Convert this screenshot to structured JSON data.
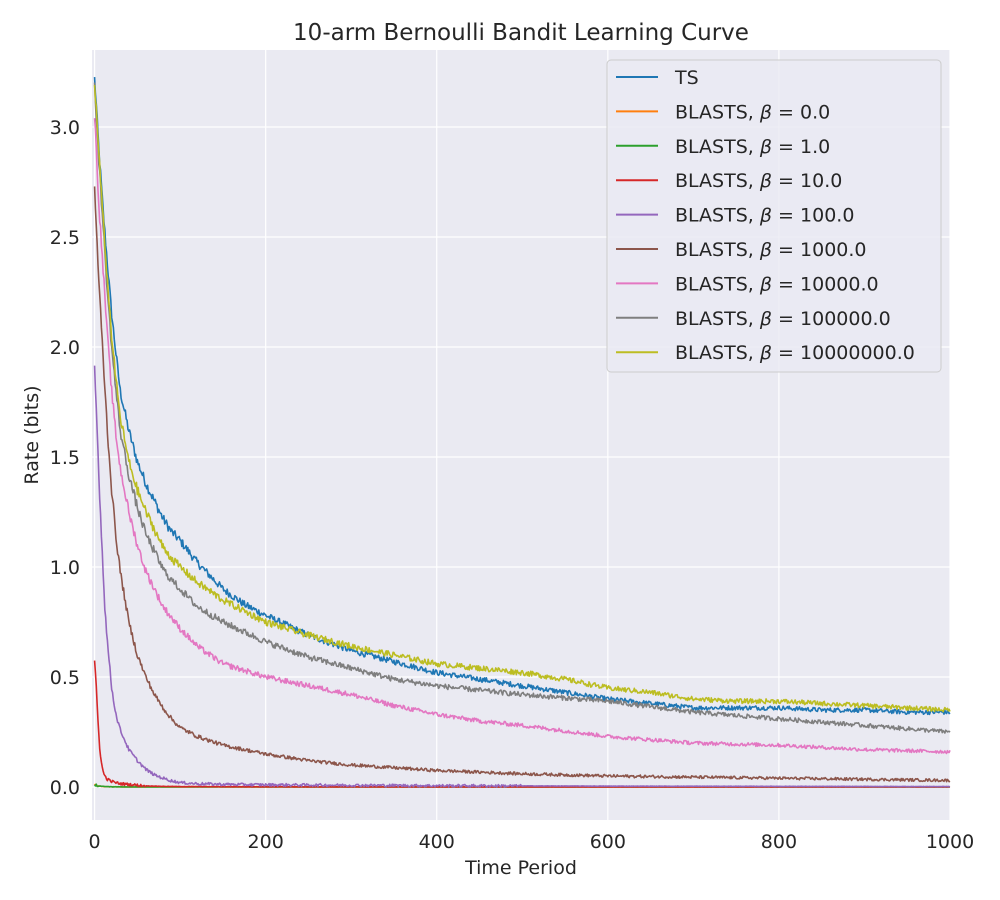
{
  "chart_data": {
    "type": "line",
    "title": "10-arm Bernoulli Bandit Learning Curve",
    "xlabel": "Time Period",
    "ylabel": "Rate (bits)",
    "xlim": [
      -3,
      1000
    ],
    "ylim": [
      -0.15,
      3.35
    ],
    "x_ticks": [
      0,
      200,
      400,
      600,
      800,
      1000
    ],
    "x_tick_labels": [
      "0",
      "200",
      "400",
      "600",
      "800",
      "1000"
    ],
    "y_ticks": [
      0.0,
      0.5,
      1.0,
      1.5,
      2.0,
      2.5,
      3.0
    ],
    "y_tick_labels": [
      "0.0",
      "0.5",
      "1.0",
      "1.5",
      "2.0",
      "2.5",
      "3.0"
    ],
    "grid": true,
    "legend_position": "top-right",
    "series": [
      {
        "name": "TS",
        "legend_prefix": "TS",
        "beta": "",
        "color": "#1f77b4",
        "x": [
          0,
          2,
          5,
          10,
          15,
          20,
          25,
          30,
          40,
          50,
          60,
          70,
          80,
          90,
          100,
          120,
          150,
          175,
          200,
          250,
          300,
          350,
          400,
          450,
          500,
          550,
          600,
          650,
          700,
          750,
          800,
          850,
          900,
          950,
          1000
        ],
        "y": [
          3.22,
          3.1,
          2.9,
          2.62,
          2.38,
          2.15,
          1.97,
          1.8,
          1.62,
          1.48,
          1.38,
          1.3,
          1.22,
          1.16,
          1.12,
          1.02,
          0.9,
          0.83,
          0.78,
          0.69,
          0.62,
          0.57,
          0.52,
          0.49,
          0.46,
          0.43,
          0.4,
          0.38,
          0.36,
          0.36,
          0.36,
          0.35,
          0.35,
          0.34,
          0.34
        ]
      },
      {
        "name": "BLASTS, β = 0.0",
        "legend_prefix": "BLASTS, ",
        "beta": "0.0",
        "color": "#ff7f0e",
        "x": [
          0,
          2,
          5,
          10,
          20,
          40,
          60,
          100,
          200,
          400,
          600,
          800,
          1000
        ],
        "y": [
          0.01,
          0.006,
          0.004,
          0.002,
          0.001,
          0.0,
          0.0,
          0.0,
          0.0,
          0.0,
          0.0,
          0.0,
          0.0
        ]
      },
      {
        "name": "BLASTS, β = 1.0",
        "legend_prefix": "BLASTS, ",
        "beta": "1.0",
        "color": "#2ca02c",
        "x": [
          0,
          2,
          5,
          10,
          20,
          40,
          60,
          100,
          200,
          400,
          600,
          800,
          1000
        ],
        "y": [
          0.012,
          0.008,
          0.005,
          0.003,
          0.001,
          0.0,
          0.0,
          0.0,
          0.0,
          0.0,
          0.0,
          0.0,
          0.0
        ]
      },
      {
        "name": "BLASTS, β = 10.0",
        "legend_prefix": "BLASTS, ",
        "beta": "10.0",
        "color": "#d62728",
        "x": [
          0,
          2,
          4,
          6,
          8,
          10,
          12,
          15,
          20,
          25,
          30,
          40,
          50,
          60,
          80,
          100,
          200,
          400,
          600,
          800,
          1000
        ],
        "y": [
          0.57,
          0.45,
          0.3,
          0.18,
          0.11,
          0.07,
          0.05,
          0.035,
          0.025,
          0.02,
          0.015,
          0.012,
          0.008,
          0.005,
          0.003,
          0.002,
          0.001,
          0.0,
          0.0,
          0.0,
          0.0
        ]
      },
      {
        "name": "BLASTS, β = 100.0",
        "legend_prefix": "BLASTS, ",
        "beta": "100.0",
        "color": "#9467bd",
        "x": [
          0,
          2,
          5,
          8,
          10,
          12,
          15,
          20,
          25,
          30,
          40,
          50,
          60,
          70,
          80,
          90,
          100,
          120,
          150,
          200,
          300,
          400,
          600,
          800,
          1000
        ],
        "y": [
          1.9,
          1.72,
          1.42,
          1.15,
          0.98,
          0.82,
          0.66,
          0.45,
          0.33,
          0.26,
          0.17,
          0.12,
          0.08,
          0.055,
          0.04,
          0.028,
          0.02,
          0.015,
          0.012,
          0.01,
          0.008,
          0.006,
          0.004,
          0.003,
          0.002
        ]
      },
      {
        "name": "BLASTS, β = 1000.0",
        "legend_prefix": "BLASTS, ",
        "beta": "1000.0",
        "color": "#8c564b",
        "x": [
          0,
          2,
          5,
          10,
          15,
          20,
          25,
          30,
          40,
          50,
          60,
          70,
          80,
          90,
          100,
          120,
          150,
          200,
          250,
          300,
          400,
          500,
          600,
          700,
          800,
          900,
          1000
        ],
        "y": [
          2.72,
          2.55,
          2.3,
          1.95,
          1.62,
          1.35,
          1.14,
          0.98,
          0.75,
          0.6,
          0.5,
          0.42,
          0.36,
          0.31,
          0.27,
          0.23,
          0.19,
          0.15,
          0.12,
          0.1,
          0.075,
          0.06,
          0.05,
          0.045,
          0.04,
          0.035,
          0.03
        ]
      },
      {
        "name": "BLASTS, β = 10000.0",
        "legend_prefix": "BLASTS, ",
        "beta": "10000.0",
        "color": "#e377c2",
        "x": [
          0,
          2,
          5,
          10,
          15,
          20,
          25,
          30,
          40,
          50,
          60,
          70,
          80,
          90,
          100,
          120,
          150,
          200,
          250,
          300,
          350,
          400,
          450,
          500,
          600,
          700,
          800,
          900,
          1000
        ],
        "y": [
          3.05,
          2.9,
          2.65,
          2.35,
          2.05,
          1.8,
          1.6,
          1.45,
          1.25,
          1.1,
          0.98,
          0.9,
          0.82,
          0.77,
          0.72,
          0.64,
          0.56,
          0.5,
          0.46,
          0.42,
          0.37,
          0.33,
          0.3,
          0.28,
          0.23,
          0.2,
          0.19,
          0.17,
          0.16
        ]
      },
      {
        "name": "BLASTS, β = 100000.0",
        "legend_prefix": "BLASTS, ",
        "beta": "100000.0",
        "color": "#7f7f7f",
        "x": [
          0,
          2,
          5,
          10,
          15,
          20,
          25,
          30,
          40,
          50,
          60,
          70,
          80,
          90,
          100,
          120,
          150,
          200,
          250,
          300,
          350,
          400,
          450,
          500,
          600,
          700,
          800,
          900,
          1000
        ],
        "y": [
          3.18,
          3.05,
          2.85,
          2.55,
          2.25,
          2.0,
          1.8,
          1.62,
          1.42,
          1.27,
          1.15,
          1.07,
          0.99,
          0.94,
          0.9,
          0.82,
          0.75,
          0.66,
          0.59,
          0.54,
          0.49,
          0.46,
          0.44,
          0.42,
          0.39,
          0.34,
          0.31,
          0.28,
          0.25
        ]
      },
      {
        "name": "BLASTS, β = 10000000.0",
        "legend_prefix": "BLASTS, ",
        "beta": "10000000.0",
        "color": "#bcbd22",
        "x": [
          0,
          2,
          5,
          10,
          15,
          20,
          25,
          30,
          40,
          50,
          60,
          70,
          80,
          90,
          100,
          120,
          150,
          175,
          200,
          250,
          300,
          350,
          400,
          450,
          500,
          550,
          600,
          650,
          700,
          750,
          800,
          850,
          900,
          950,
          1000
        ],
        "y": [
          3.2,
          3.08,
          2.88,
          2.58,
          2.3,
          2.05,
          1.85,
          1.68,
          1.48,
          1.35,
          1.25,
          1.17,
          1.09,
          1.04,
          1.0,
          0.93,
          0.85,
          0.8,
          0.75,
          0.69,
          0.64,
          0.6,
          0.56,
          0.54,
          0.52,
          0.49,
          0.45,
          0.43,
          0.4,
          0.39,
          0.39,
          0.38,
          0.37,
          0.36,
          0.35
        ]
      }
    ]
  }
}
